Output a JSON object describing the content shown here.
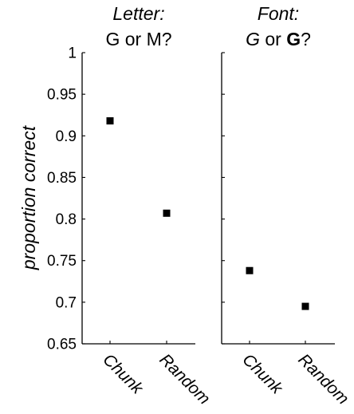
{
  "chart_data": [
    {
      "type": "scatter",
      "title_line1": "Letter:",
      "title_line2": [
        {
          "text": "G or M?",
          "style": "normal"
        }
      ],
      "ylabel": "proportion correct",
      "ylim": [
        0.65,
        1
      ],
      "yticks": [
        "0.65",
        "0.7",
        "0.75",
        "0.8",
        "0.85",
        "0.9",
        "0.95",
        "1"
      ],
      "categories": [
        "Chunk",
        "Random"
      ],
      "values": [
        0.918,
        0.807
      ],
      "error": [
        0.003,
        0.003
      ],
      "grid": false
    },
    {
      "type": "scatter",
      "title_line1": "Font:",
      "title_line2": [
        {
          "text": "G",
          "style": "italic"
        },
        {
          "text": " or ",
          "style": "normal"
        },
        {
          "text": "G",
          "style": "bold"
        },
        {
          "text": "?",
          "style": "normal"
        }
      ],
      "ylim": [
        0.65,
        1
      ],
      "categories": [
        "Chunk",
        "Random"
      ],
      "values": [
        0.738,
        0.695
      ],
      "error": [
        0.003,
        0.003
      ],
      "grid": false
    }
  ],
  "colors": {
    "axis": "#000000",
    "marker": "#000000"
  }
}
